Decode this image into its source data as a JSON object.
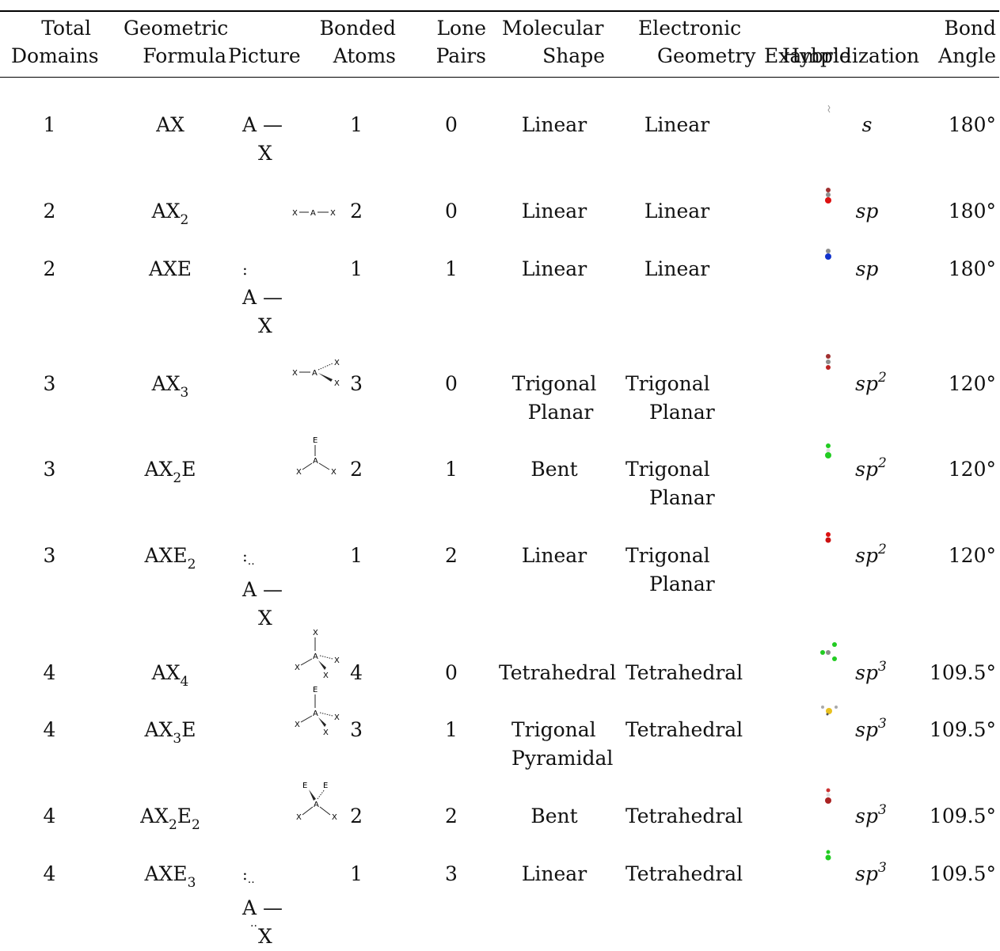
{
  "headers": {
    "total_domains": [
      "Total",
      "Domains"
    ],
    "geometric_formula": [
      "Geometric",
      "Formula"
    ],
    "picture": "Picture",
    "bonded_atoms": [
      "Bonded",
      "Atoms"
    ],
    "lone_pairs": [
      "Lone",
      "Pairs"
    ],
    "molecular_shape": [
      "Molecular",
      "Shape"
    ],
    "electronic_geometry": [
      "Electronic",
      "Geometry"
    ],
    "example": "Example",
    "hybridization": "Hybridization",
    "bond_angle": [
      "Bond",
      "Angle"
    ]
  },
  "picture_labels": {
    "A": "A",
    "X": "X",
    "E": "E",
    "bond": "—"
  },
  "rows": [
    {
      "domains": "1",
      "formula": {
        "base": "AX",
        "sub1": "",
        "mid": "",
        "sub2": ""
      },
      "bonded": "1",
      "lone": "0",
      "shape": [
        "Linear"
      ],
      "geometry": [
        "Linear"
      ],
      "hyb": {
        "base": "s",
        "sup": ""
      },
      "angle": "180°"
    },
    {
      "domains": "2",
      "formula": {
        "base": "AX",
        "sub1": "2",
        "mid": "",
        "sub2": ""
      },
      "bonded": "2",
      "lone": "0",
      "shape": [
        "Linear"
      ],
      "geometry": [
        "Linear"
      ],
      "hyb": {
        "base": "sp",
        "sup": ""
      },
      "angle": "180°"
    },
    {
      "domains": "2",
      "formula": {
        "base": "AXE",
        "sub1": "",
        "mid": "",
        "sub2": ""
      },
      "bonded": "1",
      "lone": "1",
      "shape": [
        "Linear"
      ],
      "geometry": [
        "Linear"
      ],
      "hyb": {
        "base": "sp",
        "sup": ""
      },
      "angle": "180°"
    },
    {
      "domains": "3",
      "formula": {
        "base": "AX",
        "sub1": "3",
        "mid": "",
        "sub2": ""
      },
      "bonded": "3",
      "lone": "0",
      "shape": [
        "Trigonal",
        "Planar"
      ],
      "geometry": [
        "Trigonal",
        "Planar"
      ],
      "hyb": {
        "base": "sp",
        "sup": "2"
      },
      "angle": "120°"
    },
    {
      "domains": "3",
      "formula": {
        "base": "AX",
        "sub1": "2",
        "mid": "E",
        "sub2": ""
      },
      "bonded": "2",
      "lone": "1",
      "shape": [
        "Bent"
      ],
      "geometry": [
        "Trigonal",
        "Planar"
      ],
      "hyb": {
        "base": "sp",
        "sup": "2"
      },
      "angle": "120°"
    },
    {
      "domains": "3",
      "formula": {
        "base": "AXE",
        "sub1": "2",
        "mid": "",
        "sub2": ""
      },
      "bonded": "1",
      "lone": "2",
      "shape": [
        "Linear"
      ],
      "geometry": [
        "Trigonal",
        "Planar"
      ],
      "hyb": {
        "base": "sp",
        "sup": "2"
      },
      "angle": "120°"
    },
    {
      "domains": "4",
      "formula": {
        "base": "AX",
        "sub1": "4",
        "mid": "",
        "sub2": ""
      },
      "bonded": "4",
      "lone": "0",
      "shape": [
        "Tetrahedral"
      ],
      "geometry": [
        "Tetrahedral"
      ],
      "hyb": {
        "base": "sp",
        "sup": "3"
      },
      "angle": "109.5°"
    },
    {
      "domains": "4",
      "formula": {
        "base": "AX",
        "sub1": "3",
        "mid": "E",
        "sub2": ""
      },
      "bonded": "3",
      "lone": "1",
      "shape": [
        "Trigonal",
        "Pyramidal"
      ],
      "geometry": [
        "Tetrahedral"
      ],
      "hyb": {
        "base": "sp",
        "sup": "3"
      },
      "angle": "109.5°"
    },
    {
      "domains": "4",
      "formula": {
        "base": "AX",
        "sub1": "2",
        "mid": "E",
        "sub2": "2"
      },
      "bonded": "2",
      "lone": "2",
      "shape": [
        "Bent"
      ],
      "geometry": [
        "Tetrahedral"
      ],
      "hyb": {
        "base": "sp",
        "sup": "3"
      },
      "angle": "109.5°"
    },
    {
      "domains": "4",
      "formula": {
        "base": "AXE",
        "sub1": "3",
        "mid": "",
        "sub2": ""
      },
      "bonded": "1",
      "lone": "3",
      "shape": [
        "Linear"
      ],
      "geometry": [
        "Tetrahedral"
      ],
      "hyb": {
        "base": "sp",
        "sup": "3"
      },
      "angle": "109.5°"
    }
  ],
  "example_colors": {
    "grey": "#8c8c8c",
    "red": "#cc1111",
    "blue": "#1133cc",
    "green": "#22cc22",
    "yellow": "#e8c020",
    "white": "#dddddd"
  }
}
